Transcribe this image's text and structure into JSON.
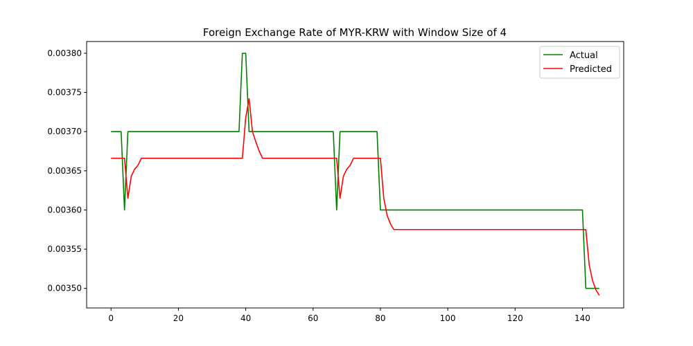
{
  "chart_data": {
    "type": "line",
    "title": "Foreign Exchange Rate of MYR-KRW with Window Size of 4",
    "xlabel": "",
    "ylabel": "",
    "xlim": [
      -7.25,
      152.25
    ],
    "ylim": [
      0.003475,
      0.003815
    ],
    "x_ticks": [
      0,
      20,
      40,
      60,
      80,
      100,
      120,
      140
    ],
    "y_ticks": [
      0.0035,
      0.00355,
      0.0036,
      0.00365,
      0.0037,
      0.00375,
      0.0038
    ],
    "y_tick_labels": [
      "0.00350",
      "0.00355",
      "0.00360",
      "0.00365",
      "0.00370",
      "0.00375",
      "0.00380"
    ],
    "grid": false,
    "legend_position": "top-right",
    "series": [
      {
        "name": "Actual",
        "color": "#008000",
        "points": [
          [
            0,
            0.0037
          ],
          [
            3,
            0.0037
          ],
          [
            4,
            0.0036
          ],
          [
            5,
            0.0037
          ],
          [
            38,
            0.0037
          ],
          [
            39,
            0.0038
          ],
          [
            40,
            0.0038
          ],
          [
            41,
            0.0037
          ],
          [
            66,
            0.0037
          ],
          [
            67,
            0.0036
          ],
          [
            68,
            0.0037
          ],
          [
            79,
            0.0037
          ],
          [
            80,
            0.0036
          ],
          [
            140,
            0.0036
          ],
          [
            141,
            0.0035
          ],
          [
            145,
            0.0035
          ]
        ]
      },
      {
        "name": "Predicted",
        "color": "#ff0000",
        "points": [
          [
            0,
            0.003666
          ],
          [
            4,
            0.003666
          ],
          [
            5,
            0.003615
          ],
          [
            6,
            0.003643
          ],
          [
            7,
            0.003652
          ],
          [
            8,
            0.003657
          ],
          [
            9,
            0.003666
          ],
          [
            39,
            0.003666
          ],
          [
            40,
            0.003718
          ],
          [
            41,
            0.003742
          ],
          [
            42,
            0.0037
          ],
          [
            43,
            0.003687
          ],
          [
            44,
            0.003675
          ],
          [
            45,
            0.003666
          ],
          [
            67,
            0.003666
          ],
          [
            68,
            0.003615
          ],
          [
            69,
            0.003643
          ],
          [
            70,
            0.003652
          ],
          [
            71,
            0.003657
          ],
          [
            72,
            0.003666
          ],
          [
            80,
            0.003666
          ],
          [
            81,
            0.003615
          ],
          [
            82,
            0.003593
          ],
          [
            83,
            0.003582
          ],
          [
            84,
            0.003575
          ],
          [
            141,
            0.003575
          ],
          [
            142,
            0.00353
          ],
          [
            143,
            0.00351
          ],
          [
            144,
            0.003498
          ],
          [
            145,
            0.003491
          ]
        ]
      }
    ]
  }
}
